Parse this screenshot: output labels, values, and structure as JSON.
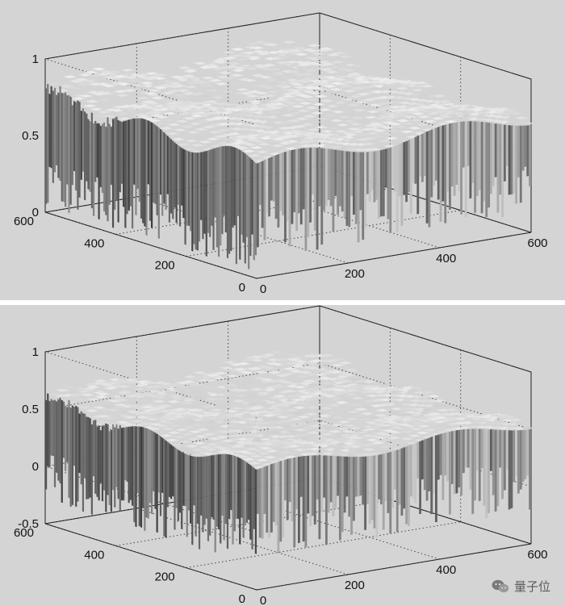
{
  "chart_data": [
    {
      "type": "surface",
      "panel": "top",
      "title": "",
      "xlabel": "",
      "ylabel": "",
      "zlabel": "",
      "xlim": [
        0,
        600
      ],
      "ylim": [
        0,
        600
      ],
      "zlim": [
        0,
        1
      ],
      "x_ticks": [
        "0",
        "200",
        "400",
        "600"
      ],
      "y_ticks": [
        "0",
        "200",
        "400",
        "600"
      ],
      "z_ticks": [
        "0",
        "0.5",
        "1"
      ],
      "grid": true,
      "colormap": "gray",
      "surface_level_typical": 0.75,
      "surface_min": 0.0,
      "surface_max": 0.95
    },
    {
      "type": "surface",
      "panel": "bottom",
      "title": "",
      "xlabel": "",
      "ylabel": "",
      "zlabel": "",
      "xlim": [
        0,
        600
      ],
      "ylim": [
        0,
        600
      ],
      "zlim": [
        -0.5,
        1
      ],
      "x_ticks": [
        "0",
        "200",
        "400",
        "600"
      ],
      "y_ticks": [
        "0",
        "200",
        "400",
        "600"
      ],
      "z_ticks": [
        "-0.5",
        "0",
        "0.5",
        "1"
      ],
      "grid": true,
      "colormap": "gray",
      "surface_level_typical": 0.55,
      "surface_min": -0.35,
      "surface_max": 0.95
    }
  ],
  "watermark": {
    "text": "量子位",
    "icon": "wechat-logo-icon"
  },
  "colors": {
    "background": "#d4d4d4",
    "surface_light": "#eeeeee",
    "surface_dark": "#3a3a3a"
  }
}
